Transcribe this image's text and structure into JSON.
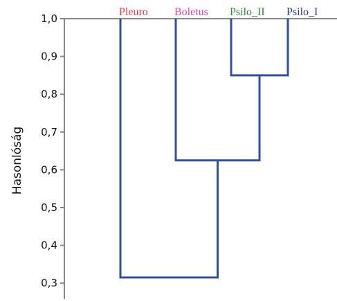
{
  "chart_data": {
    "type": "dendrogram",
    "title": "",
    "xlabel": "",
    "ylabel": "Hasonlóság",
    "ylim": [
      0.28,
      1.0
    ],
    "yticks": [
      1.0,
      0.9,
      0.8,
      0.7,
      0.6,
      0.5,
      0.4,
      0.3
    ],
    "ytick_labels": [
      "1,0",
      "0,9",
      "0,8",
      "0,7",
      "0,6",
      "0,5",
      "0,4",
      "0,3"
    ],
    "leaves": [
      {
        "label": "Pleuro",
        "color": "#e8334a"
      },
      {
        "label": "Boletus",
        "color": "#e8459a"
      },
      {
        "label": "Psilo_II",
        "color": "#2e8b3e"
      },
      {
        "label": "Psilo_I",
        "color": "#2e3a8f"
      }
    ],
    "merges": [
      {
        "left": "Psilo_II",
        "right": "Psilo_I",
        "similarity": 0.85
      },
      {
        "left": "Boletus",
        "right": "Psilo_II+Psilo_I",
        "similarity": 0.625
      },
      {
        "left": "Pleuro",
        "right": "Boletus+Psilo_II+Psilo_I",
        "similarity": 0.315
      }
    ],
    "link_color": "#2f4fa0",
    "axis_color": "#888888",
    "grid": false
  }
}
